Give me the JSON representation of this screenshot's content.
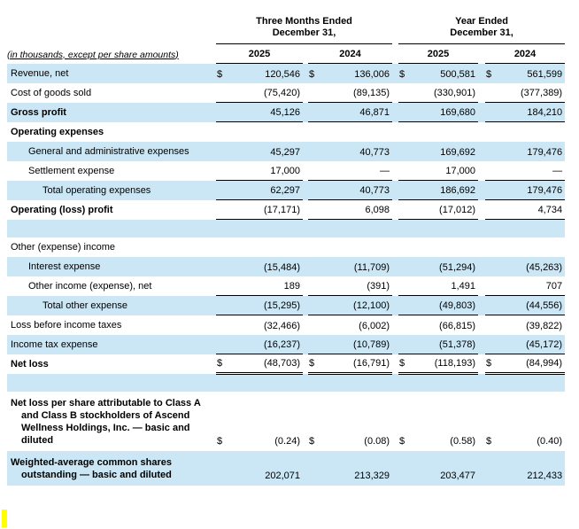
{
  "meta_label": "(in thousands, except per share amounts)",
  "header": {
    "groups": [
      {
        "line1": "Three Months Ended",
        "line2": "December 31,"
      },
      {
        "line1": "Year Ended",
        "line2": "December 31,"
      }
    ],
    "years": [
      "2025",
      "2024",
      "2025",
      "2024"
    ]
  },
  "colors": {
    "stripe": "#cbe7f6",
    "border": "#000000",
    "cursor": "#ffff00"
  },
  "rows": [
    {
      "label": "Revenue, net",
      "indent": 0,
      "bold": false,
      "stripe": true,
      "dollar": true,
      "border": "",
      "values": [
        "120,546",
        "136,006",
        "500,581",
        "561,599"
      ]
    },
    {
      "label": "Cost of goods sold",
      "indent": 0,
      "bold": false,
      "stripe": false,
      "dollar": false,
      "border": "b1",
      "values": [
        "(75,420)",
        "(89,135)",
        "(330,901)",
        "(377,389)"
      ]
    },
    {
      "label": "Gross profit",
      "indent": 0,
      "bold": true,
      "stripe": true,
      "dollar": false,
      "border": "b1",
      "values": [
        "45,126",
        "46,871",
        "169,680",
        "184,210"
      ]
    },
    {
      "label": "Operating expenses",
      "indent": 0,
      "bold": true,
      "stripe": false,
      "dollar": false,
      "border": "",
      "values": [
        "",
        "",
        "",
        ""
      ]
    },
    {
      "label": "General and administrative expenses",
      "indent": 1,
      "bold": false,
      "stripe": true,
      "dollar": false,
      "border": "",
      "values": [
        "45,297",
        "40,773",
        "169,692",
        "179,476"
      ]
    },
    {
      "label": "Settlement expense",
      "indent": 1,
      "bold": false,
      "stripe": false,
      "dollar": false,
      "border": "b1",
      "values": [
        "17,000",
        "—",
        "17,000",
        "—"
      ]
    },
    {
      "label": "Total operating expenses",
      "indent": 2,
      "bold": false,
      "stripe": true,
      "dollar": false,
      "border": "b1",
      "values": [
        "62,297",
        "40,773",
        "186,692",
        "179,476"
      ]
    },
    {
      "label": "Operating (loss) profit",
      "indent": 0,
      "bold": true,
      "stripe": false,
      "dollar": false,
      "border": "b1",
      "values": [
        "(17,171)",
        "6,098",
        "(17,012)",
        "4,734"
      ]
    },
    {
      "label": "",
      "blank": true,
      "indent": 0,
      "bold": false,
      "stripe": true,
      "dollar": false,
      "border": "",
      "values": [
        "",
        "",
        "",
        ""
      ]
    },
    {
      "label": "Other (expense) income",
      "indent": 0,
      "bold": false,
      "stripe": false,
      "dollar": false,
      "border": "",
      "values": [
        "",
        "",
        "",
        ""
      ]
    },
    {
      "label": "Interest expense",
      "indent": 1,
      "bold": false,
      "stripe": true,
      "dollar": false,
      "border": "",
      "values": [
        "(15,484)",
        "(11,709)",
        "(51,294)",
        "(45,263)"
      ]
    },
    {
      "label": "Other income (expense), net",
      "indent": 1,
      "bold": false,
      "stripe": false,
      "dollar": false,
      "border": "b1",
      "values": [
        "189",
        "(391)",
        "1,491",
        "707"
      ]
    },
    {
      "label": "Total other expense",
      "indent": 2,
      "bold": false,
      "stripe": true,
      "dollar": false,
      "border": "b1",
      "values": [
        "(15,295)",
        "(12,100)",
        "(49,803)",
        "(44,556)"
      ]
    },
    {
      "label": "Loss before income taxes",
      "indent": 0,
      "bold": false,
      "stripe": false,
      "dollar": false,
      "border": "",
      "values": [
        "(32,466)",
        "(6,002)",
        "(66,815)",
        "(39,822)"
      ]
    },
    {
      "label": "Income tax expense",
      "indent": 0,
      "bold": false,
      "stripe": true,
      "dollar": false,
      "border": "b1",
      "values": [
        "(16,237)",
        "(10,789)",
        "(51,378)",
        "(45,172)"
      ]
    },
    {
      "label": "Net loss",
      "indent": 0,
      "bold": true,
      "stripe": false,
      "dollar": true,
      "border": "b2",
      "values": [
        "(48,703)",
        "(16,791)",
        "(118,193)",
        "(84,994)"
      ]
    },
    {
      "label": "",
      "blank": true,
      "indent": 0,
      "bold": false,
      "stripe": true,
      "dollar": false,
      "border": "",
      "values": [
        "",
        "",
        "",
        ""
      ]
    },
    {
      "label": "Net loss per share attributable to Class A and Class B stockholders of Ascend Wellness Holdings, Inc. — basic and diluted",
      "hang": true,
      "tall": true,
      "indent": 0,
      "bold": true,
      "stripe": false,
      "dollar": true,
      "border": "",
      "values": [
        "(0.24)",
        "(0.08)",
        "(0.58)",
        "(0.40)"
      ]
    },
    {
      "label": "Weighted-average common shares outstanding — basic and diluted",
      "hang": true,
      "tall": true,
      "indent": 0,
      "bold": true,
      "stripe": true,
      "dollar": false,
      "border": "",
      "values": [
        "202,071",
        "213,329",
        "203,477",
        "212,433"
      ]
    }
  ]
}
